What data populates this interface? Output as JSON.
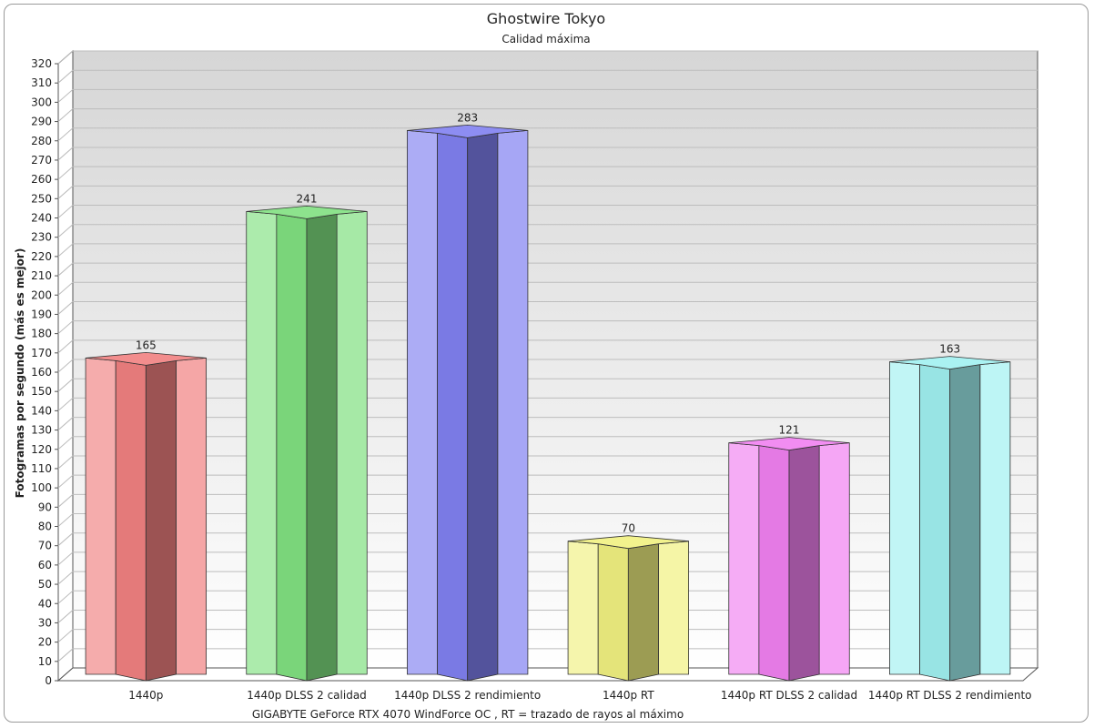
{
  "chart_data": {
    "type": "bar",
    "title": "Ghostwire Tokyo",
    "subtitle": "Calidad máxima",
    "xlabel": "GIGABYTE GeForce RTX 4070 WindForce OC , RT = trazado de rayos al máximo",
    "ylabel": "Fotogramas por segundo (más es mejor)",
    "ylim": [
      0,
      320
    ],
    "ytick_step": 10,
    "grid": true,
    "legend": "none",
    "categories": [
      "1440p",
      "1440p DLSS 2 calidad",
      "1440p DLSS 2 rendimiento",
      "1440p RT",
      "1440p RT DLSS 2 calidad",
      "1440p RT DLSS 2 rendimiento"
    ],
    "values": [
      165,
      241,
      283,
      70,
      121,
      163
    ],
    "colors": [
      "#f08080",
      "#80e080",
      "#8080f0",
      "#f0f080",
      "#f080f0",
      "#a0f0f0"
    ]
  }
}
